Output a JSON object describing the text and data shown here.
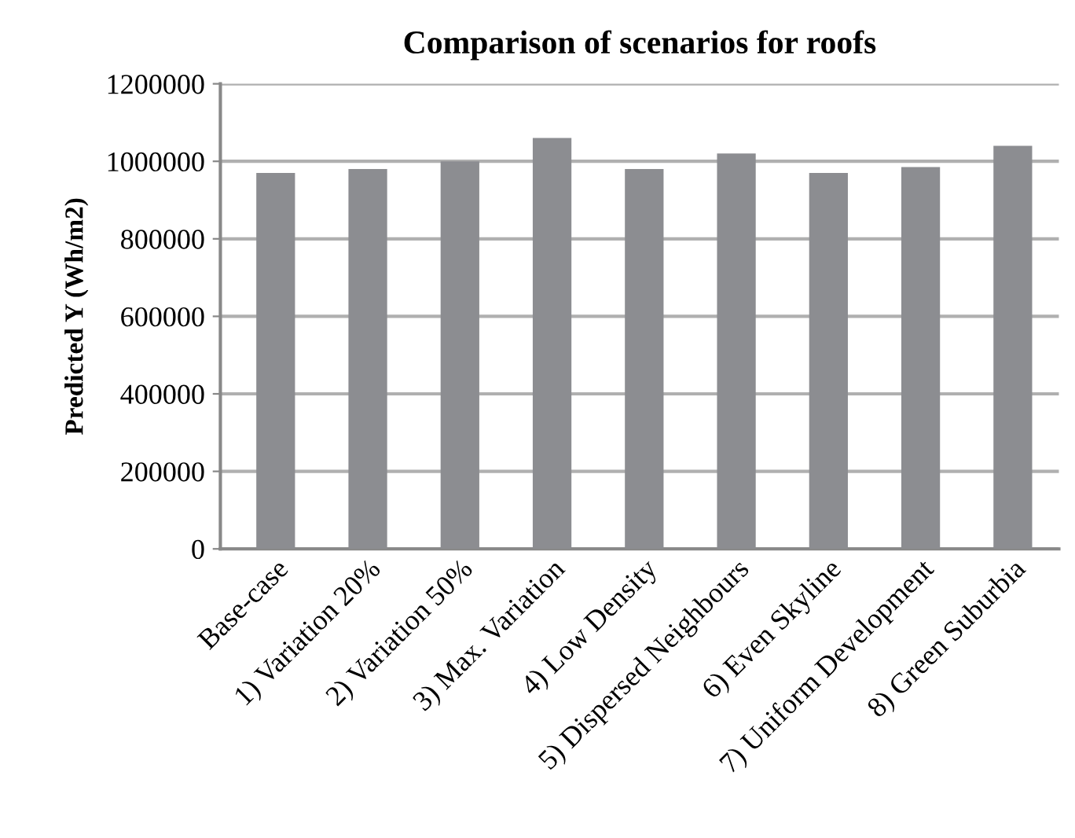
{
  "chart_data": {
    "type": "bar",
    "title": "Comparison of scenarios for roofs",
    "ylabel": "Predicted Y (Wh/m2)",
    "categories": [
      "Base-case",
      "1) Variation 20%",
      "2) Variation 50%",
      "3) Max. Variation",
      "4) Low Density",
      "5) Dispersed Neighbours",
      "6) Even Skyline",
      "7) Uniform Development",
      "8) Green Suburbia"
    ],
    "values": [
      970000,
      980000,
      1000000,
      1060000,
      980000,
      1020000,
      970000,
      985000,
      1040000
    ],
    "color": "#8c8d91",
    "ylim": [
      0,
      1200000
    ],
    "yticks": [
      0,
      200000,
      400000,
      600000,
      800000,
      1000000,
      1200000
    ],
    "grid": "y",
    "legend": false
  }
}
